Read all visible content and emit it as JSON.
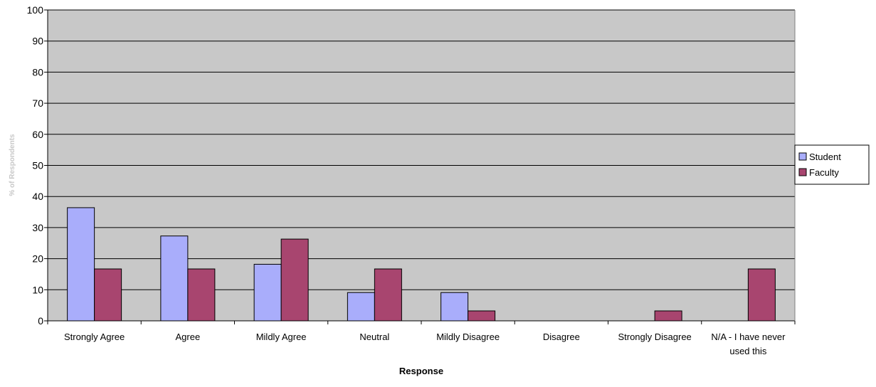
{
  "chart_data": {
    "type": "bar",
    "title": "",
    "xlabel": "Response",
    "ylabel": "% of Respondents",
    "ylim": [
      0,
      100
    ],
    "yticks": [
      0,
      10,
      20,
      30,
      40,
      50,
      60,
      70,
      80,
      90,
      100
    ],
    "grid": true,
    "legend_position": "right",
    "background_color": "#c8c8c8",
    "categories": [
      [
        "Strongly Agree"
      ],
      [
        "Agree"
      ],
      [
        "Mildly Agree"
      ],
      [
        "Neutral"
      ],
      [
        "Mildly Disagree"
      ],
      [
        "Disagree"
      ],
      [
        "Strongly Disagree"
      ],
      [
        "N/A - I have never",
        "used this"
      ]
    ],
    "series": [
      {
        "name": "Student",
        "color": "#a9adfb",
        "values": [
          36.4,
          27.3,
          18.2,
          9.1,
          9.1,
          0,
          0,
          0
        ]
      },
      {
        "name": "Faculty",
        "color": "#a8456f",
        "values": [
          16.7,
          16.7,
          26.3,
          16.7,
          3.2,
          0,
          3.2,
          16.7
        ]
      }
    ]
  }
}
